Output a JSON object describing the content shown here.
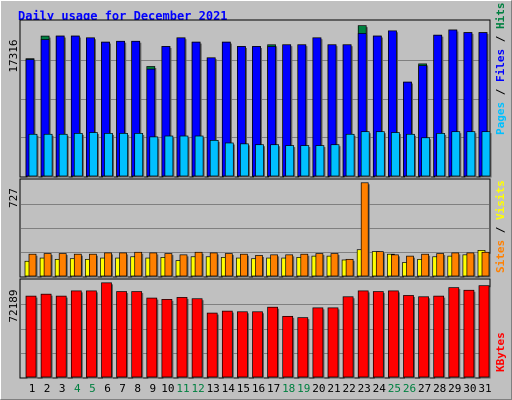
{
  "title": "Daily usage for December 2021",
  "colors": {
    "background": "#c0c0c0",
    "hits": "#008040",
    "files": "#0000ff",
    "pages": "#00c0ff",
    "visits": "#ffff00",
    "sites": "#ff8000",
    "kbytes": "#ff0000",
    "weekend_label": "#008040",
    "weekday_label": "#000000"
  },
  "legend": {
    "top": [
      {
        "text": "Pages",
        "color": "#00c0ff"
      },
      {
        "text": " / ",
        "color": "#000000"
      },
      {
        "text": "Files",
        "color": "#0000ff"
      },
      {
        "text": " / ",
        "color": "#000000"
      },
      {
        "text": "Hits",
        "color": "#008040"
      }
    ],
    "middle": [
      {
        "text": "Sites",
        "color": "#ff8000"
      },
      {
        "text": " / ",
        "color": "#000000"
      },
      {
        "text": "Visits",
        "color": "#ffff00"
      }
    ],
    "bottom": [
      {
        "text": "KBytes",
        "color": "#ff0000"
      }
    ]
  },
  "chart_data": [
    {
      "type": "bar",
      "panel": "hits_files_pages",
      "ymax_label": "17316",
      "ymax": 17316,
      "categories": [
        "1",
        "2",
        "3",
        "4",
        "5",
        "6",
        "7",
        "8",
        "9",
        "10",
        "11",
        "12",
        "13",
        "14",
        "15",
        "16",
        "17",
        "18",
        "19",
        "20",
        "21",
        "22",
        "23",
        "24",
        "25",
        "26",
        "27",
        "28",
        "29",
        "30",
        "31"
      ],
      "weekend": [
        false,
        false,
        false,
        true,
        true,
        false,
        false,
        false,
        false,
        false,
        true,
        true,
        false,
        false,
        false,
        false,
        false,
        true,
        true,
        false,
        false,
        false,
        false,
        false,
        true,
        true,
        false,
        false,
        false,
        false,
        false
      ],
      "series": [
        {
          "name": "Hits",
          "values": [
            13500,
            16100,
            16100,
            16100,
            15900,
            15400,
            15500,
            15500,
            12600,
            14900,
            15900,
            15400,
            13600,
            15400,
            14900,
            14900,
            15100,
            15100,
            15100,
            15900,
            15100,
            15100,
            17300,
            16100,
            16700,
            10800,
            12900,
            16200,
            16800,
            16500,
            16500
          ]
        },
        {
          "name": "Files",
          "values": [
            13400,
            15700,
            16100,
            16100,
            15900,
            15400,
            15500,
            15500,
            12300,
            14900,
            15900,
            15400,
            13600,
            15400,
            14900,
            14900,
            14900,
            15100,
            15100,
            15900,
            15100,
            15100,
            16400,
            16100,
            16700,
            10800,
            12700,
            16200,
            16800,
            16500,
            16500
          ]
        },
        {
          "name": "Pages",
          "values": [
            4800,
            4800,
            4800,
            4900,
            5000,
            4900,
            4900,
            4900,
            4500,
            4600,
            4600,
            4600,
            4100,
            3800,
            3700,
            3600,
            3600,
            3500,
            3500,
            3500,
            3600,
            4800,
            5100,
            5100,
            5000,
            4800,
            4400,
            4900,
            5100,
            5100,
            5100
          ]
        }
      ]
    },
    {
      "type": "bar",
      "panel": "sites_visits",
      "ymax_label": "727",
      "ymax": 727,
      "categories": [
        "1",
        "2",
        "3",
        "4",
        "5",
        "6",
        "7",
        "8",
        "9",
        "10",
        "11",
        "12",
        "13",
        "14",
        "15",
        "16",
        "17",
        "18",
        "19",
        "20",
        "21",
        "22",
        "23",
        "24",
        "25",
        "26",
        "27",
        "28",
        "29",
        "30",
        "31"
      ],
      "series": [
        {
          "name": "Visits",
          "values": [
            115,
            140,
            130,
            135,
            130,
            140,
            140,
            150,
            140,
            145,
            120,
            150,
            150,
            145,
            140,
            135,
            140,
            140,
            145,
            155,
            155,
            125,
            205,
            190,
            170,
            105,
            130,
            150,
            155,
            165,
            200
          ]
        },
        {
          "name": "Sites",
          "values": [
            170,
            175,
            175,
            170,
            170,
            180,
            180,
            185,
            180,
            175,
            165,
            185,
            180,
            175,
            170,
            160,
            165,
            165,
            170,
            175,
            175,
            130,
            727,
            190,
            165,
            155,
            170,
            175,
            180,
            180,
            185
          ]
        }
      ]
    },
    {
      "type": "bar",
      "panel": "kbytes",
      "ymax_label": "72189",
      "ymax": 72189,
      "categories": [
        "1",
        "2",
        "3",
        "4",
        "5",
        "6",
        "7",
        "8",
        "9",
        "10",
        "11",
        "12",
        "13",
        "14",
        "15",
        "16",
        "17",
        "18",
        "19",
        "20",
        "21",
        "22",
        "23",
        "24",
        "25",
        "26",
        "27",
        "28",
        "29",
        "30",
        "31"
      ],
      "series": [
        {
          "name": "KBytes",
          "values": [
            62000,
            63500,
            62000,
            66000,
            66000,
            72189,
            65500,
            65500,
            60500,
            59500,
            61000,
            60000,
            49000,
            50500,
            50000,
            50000,
            53500,
            46500,
            45500,
            53000,
            53000,
            61500,
            66000,
            65500,
            66000,
            62500,
            61500,
            62000,
            68500,
            66500,
            70000
          ]
        }
      ]
    }
  ]
}
